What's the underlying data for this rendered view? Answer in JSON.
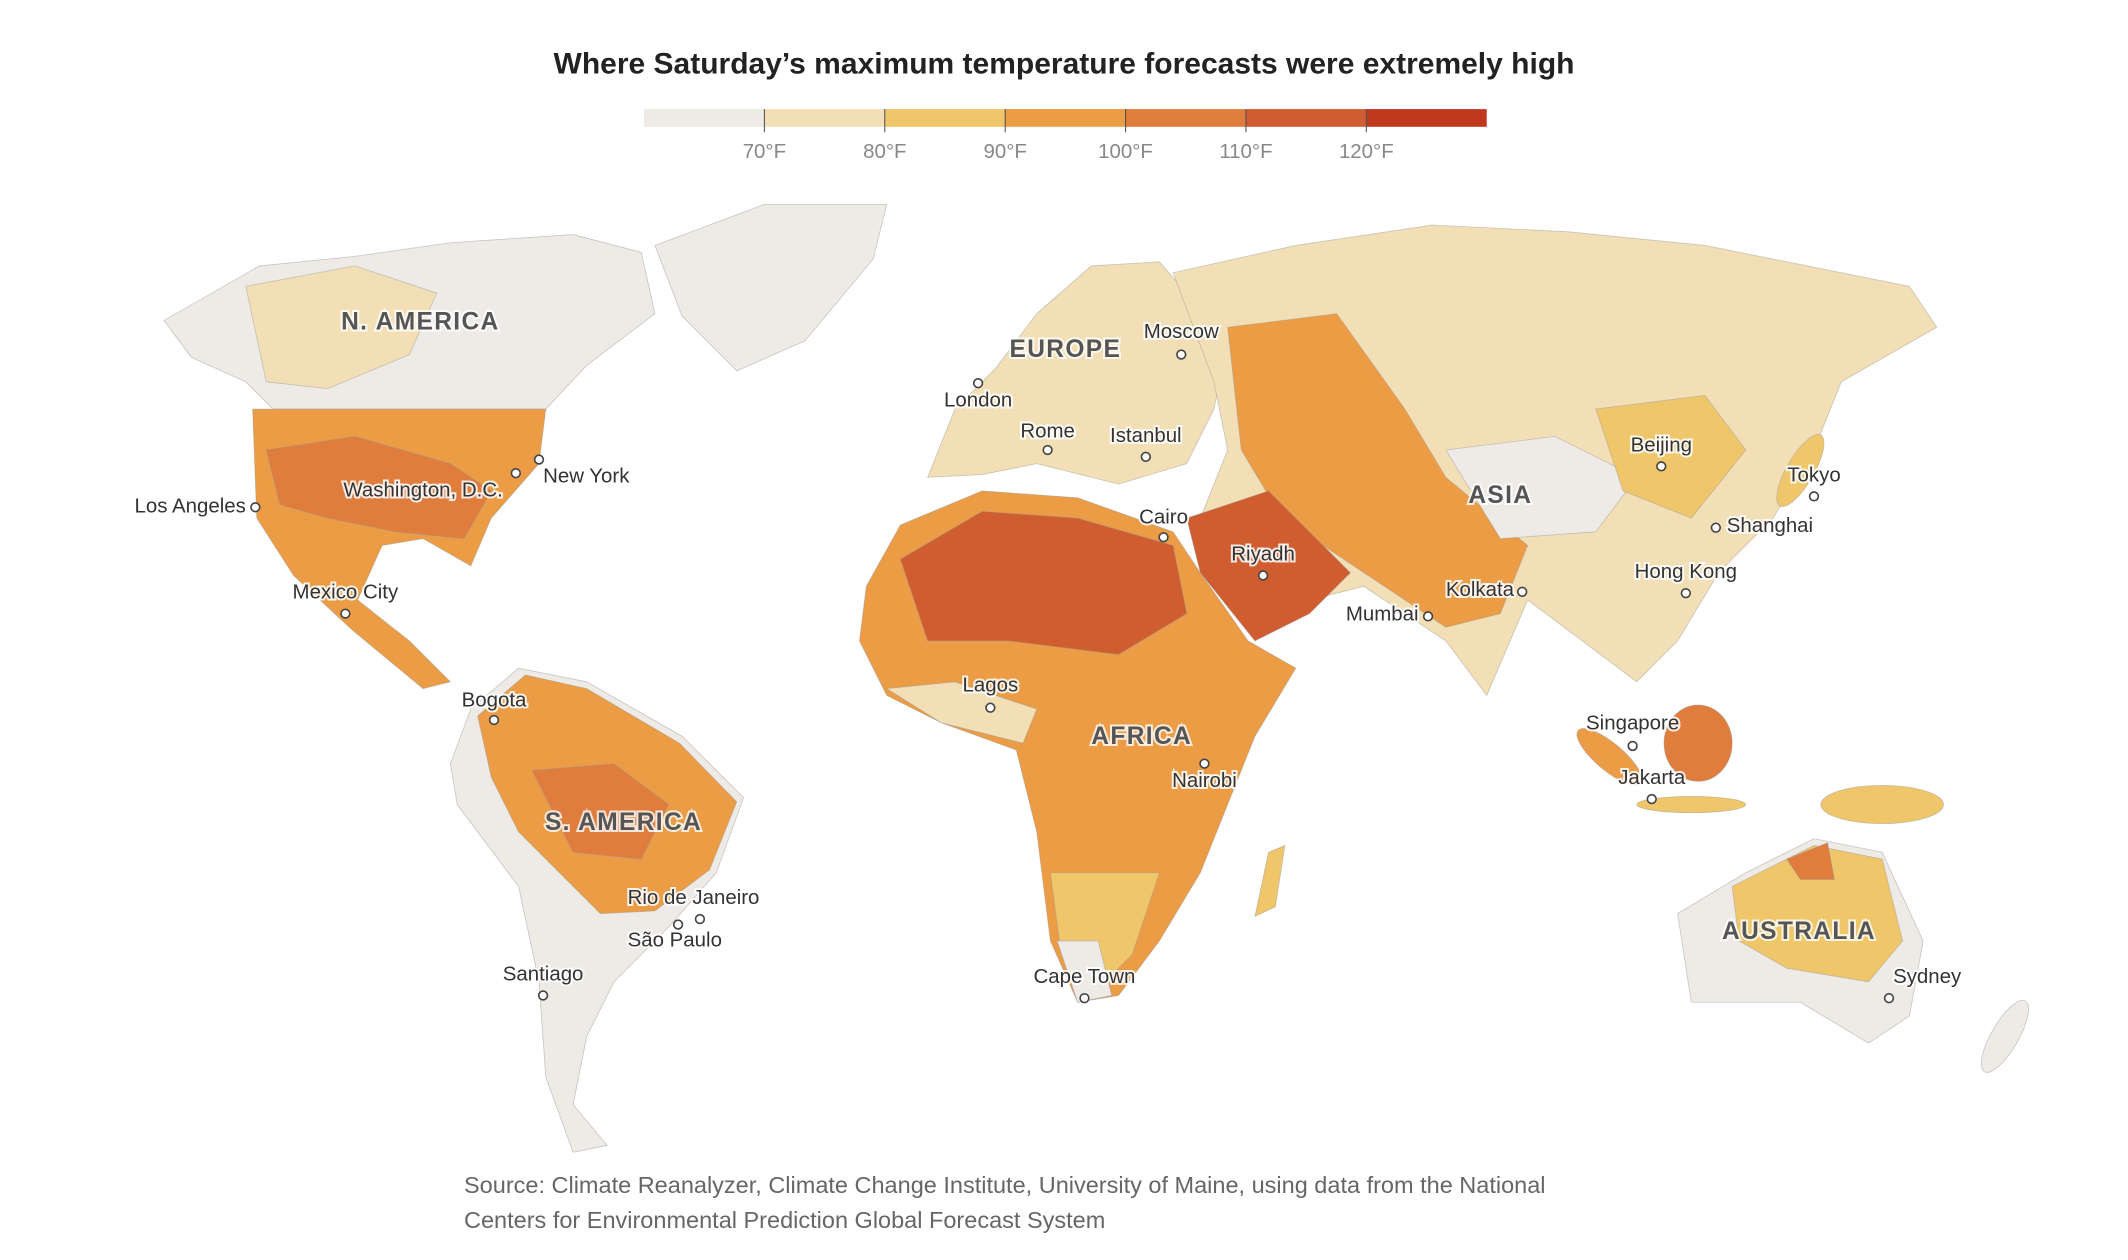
{
  "title": "Where Saturday’s maximum temperature forecasts were extremely high",
  "legend": {
    "range": [
      60,
      130
    ],
    "colors": [
      "#eeebe6",
      "#f3dfb6",
      "#f0c66a",
      "#eb9c45",
      "#e07c3c",
      "#d05d30",
      "#c0391f"
    ],
    "ticks": [
      {
        "value": 70,
        "label": "70°F"
      },
      {
        "value": 80,
        "label": "80°F"
      },
      {
        "value": 90,
        "label": "90°F"
      },
      {
        "value": 100,
        "label": "100°F"
      },
      {
        "value": 110,
        "label": "110°F"
      },
      {
        "value": 120,
        "label": "120°F"
      }
    ]
  },
  "regions": [
    "N. AMERICA",
    "EUROPE",
    "ASIA",
    "AFRICA",
    "S. AMERICA",
    "AUSTRALIA"
  ],
  "cities": [
    "Los Angeles",
    "Washington, D.C.",
    "New York",
    "Mexico City",
    "Bogota",
    "Rio de Janeiro",
    "São Paulo",
    "Santiago",
    "London",
    "Rome",
    "Istanbul",
    "Moscow",
    "Cairo",
    "Riyadh",
    "Lagos",
    "Nairobi",
    "Cape Town",
    "Mumbai",
    "Kolkata",
    "Beijing",
    "Tokyo",
    "Shanghai",
    "Hong Kong",
    "Singapore",
    "Jakarta",
    "Sydney"
  ],
  "source": "Source: Climate Reanalyzer, Climate Change Institute, University of Maine, using data from the National Centers for Environmental Prediction Global Forecast System"
}
